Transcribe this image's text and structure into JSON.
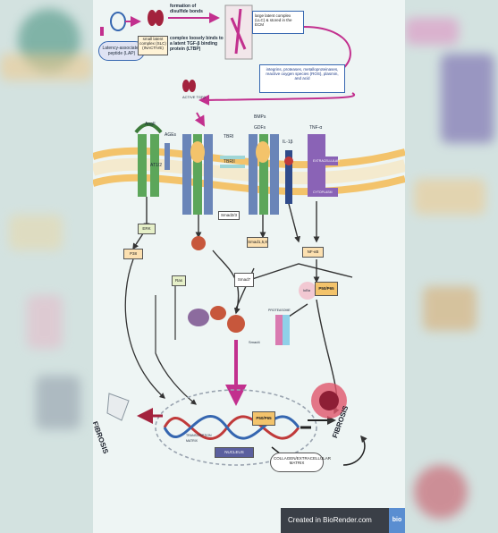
{
  "labels": {
    "lap": "Latency-associated peptide (LAP)",
    "disulfide": "formation of disulfide bonds",
    "sllc": "small latent complex (SLC) (INACTIVE)",
    "ltbp": "complex loosely binds to a latent TGF-β binding protein (LTBP)",
    "llc": "large latent complex (LLC) & stored in the ECM",
    "activators": "integrins, proteases, metalloproteinases, reactive oxygen species (ROS), plasmin, and acid",
    "active_tgfb": "ACTIVE TGFβ",
    "angii": "AngII",
    "ages": "AGEs",
    "at12": "AT1/2",
    "tbri": "TBRI",
    "tbrii": "TBRII",
    "bmps": "BMPs",
    "gdfs": "GDFs",
    "il1b": "IL-1β",
    "tnfa": "TNF-α",
    "extracellular": "EXTRACELLULAR",
    "cytoplasm": "CYTOPLASM",
    "erk": "ERK",
    "p38": "P38",
    "smad158": "Smad1,5,8",
    "smad23": "Smad2/3",
    "smad7": "Smad7",
    "smad4": "Smad4",
    "nfkb": "NF-κB",
    "ikba": "IκBα",
    "p50p65": "P50/P65",
    "ras": "Ras",
    "proteasome": "PROTEASOME",
    "nucleus": "NUCLEUS",
    "transcription": "TRANSCRIPTION MATRIX",
    "collagen": "COLLAGEN/EXTRACELLULAR MATRIX",
    "fibrosis_left": "FIBROSIS",
    "fibrosis_right": "FIBROSIS",
    "footer_text": "Created in BioRender.com",
    "footer_logo": "bio"
  },
  "colors": {
    "membrane": "#f3c36b",
    "receptor_green": "#5ca65a",
    "receptor_blue": "#6a85b8",
    "tnf_purple": "#8a63b6",
    "arrow_magenta": "#c2308e",
    "dna_red": "#c03a3a",
    "dna_blue": "#3566b0"
  }
}
